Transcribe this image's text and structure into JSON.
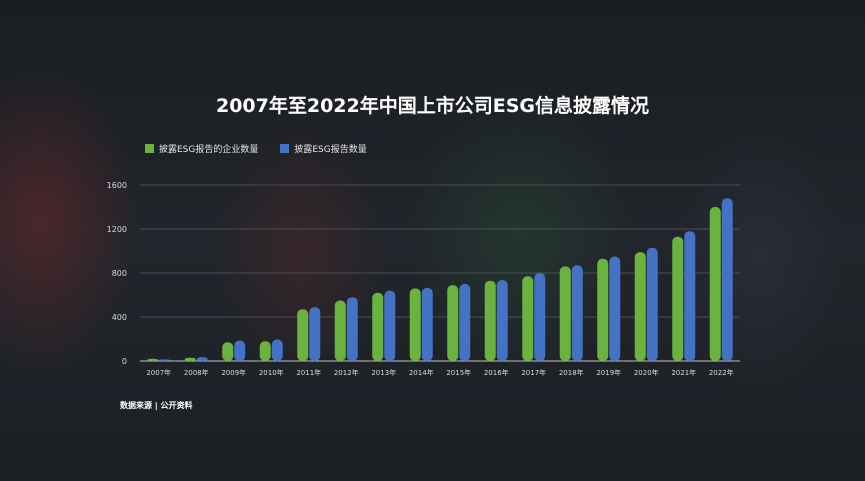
{
  "title": "2007年至2022年中国上市公司ESG信息披露情况",
  "source": "数据来源 | 公开资料",
  "colors": {
    "series1": "#6bb33f",
    "series2": "#4472c4",
    "axis": "#bfbfbf",
    "grid": "#5a5e64",
    "text": "#d9d9d9"
  },
  "chart_data": {
    "type": "bar",
    "title": "2007年至2022年中国上市公司ESG信息披露情况",
    "xlabel": "",
    "ylabel": "",
    "ylim": [
      0,
      1600
    ],
    "yticks": [
      0,
      400,
      800,
      1200,
      1600
    ],
    "grid": true,
    "legend": "top-left",
    "categories": [
      "2007年",
      "2008年",
      "2009年",
      "2010年",
      "2011年",
      "2012年",
      "2013年",
      "2014年",
      "2015年",
      "2016年",
      "2017年",
      "2018年",
      "2019年",
      "2020年",
      "2021年",
      "2022年"
    ],
    "series": [
      {
        "name": "披露ESG报告的企业数量",
        "values": [
          20,
          30,
          170,
          180,
          470,
          550,
          620,
          660,
          690,
          730,
          770,
          860,
          930,
          990,
          1130,
          1400
        ]
      },
      {
        "name": "披露ESG报告数量",
        "values": [
          15,
          35,
          185,
          195,
          490,
          580,
          640,
          665,
          700,
          735,
          800,
          870,
          950,
          1030,
          1180,
          1480
        ]
      }
    ]
  }
}
